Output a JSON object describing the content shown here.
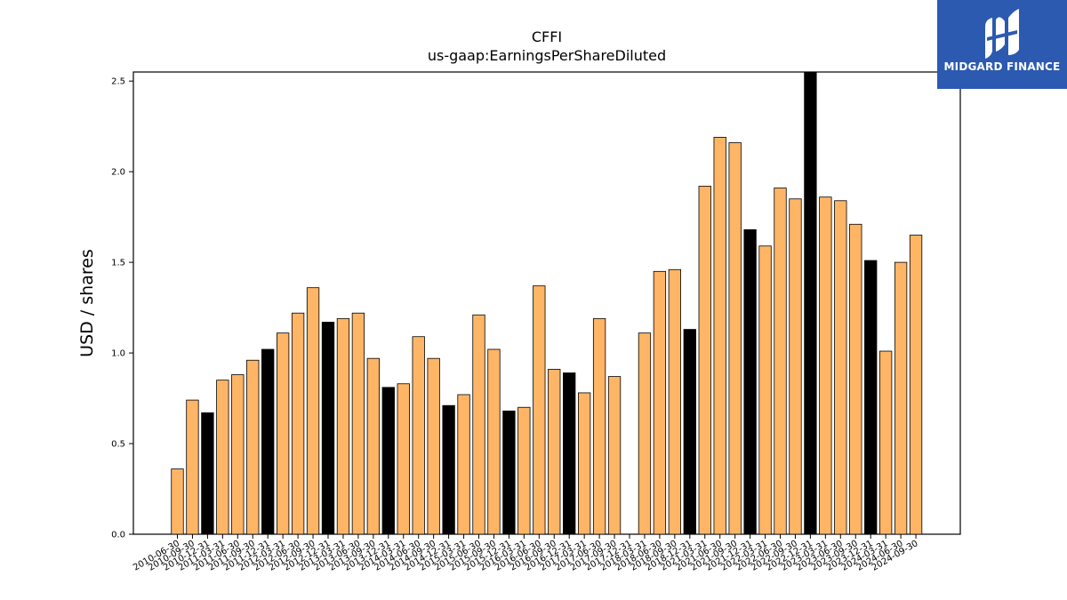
{
  "brand": {
    "name": "MIDGARD FINANCE",
    "bg_color": "#2b5ab0",
    "icon": "midgard-logo-icon"
  },
  "colors": {
    "bar_orange": "#ffb566",
    "bar_black": "#000000",
    "edge": "#000000"
  },
  "chart_data": {
    "type": "bar",
    "title": "CFFI",
    "subtitle": "us-gaap:EarningsPerShareDiluted",
    "xlabel": "",
    "ylabel": "USD / shares",
    "ylim": [
      0,
      2.55
    ],
    "yticks": [
      0.0,
      0.5,
      1.0,
      1.5,
      2.0,
      2.5
    ],
    "ytick_labels": [
      "0.0",
      "0.5",
      "1.0",
      "1.5",
      "2.0",
      "2.5"
    ],
    "grid": false,
    "categories": [
      "2010-06-30",
      "2010-09-30",
      "2010-12-31",
      "2011-03-31",
      "2011-06-30",
      "2011-09-30",
      "2011-12-31",
      "2012-03-31",
      "2012-06-30",
      "2012-09-30",
      "2012-12-31",
      "2013-03-31",
      "2013-06-30",
      "2013-09-30",
      "2013-12-31",
      "2014-03-31",
      "2014-06-30",
      "2014-09-30",
      "2014-12-31",
      "2015-03-31",
      "2015-06-30",
      "2015-09-30",
      "2015-12-31",
      "2016-03-31",
      "2016-06-30",
      "2016-09-30",
      "2016-12-31",
      "2017-03-31",
      "2017-06-30",
      "2017-09-30",
      "2017-12-31",
      "2018-03-31",
      "2018-06-30",
      "2018-09-30",
      "2018-12-31",
      "2021-03-31",
      "2021-06-30",
      "2021-09-30",
      "2021-12-31",
      "2022-03-31",
      "2022-06-30",
      "2022-09-30",
      "2022-12-31",
      "2023-03-31",
      "2023-06-30",
      "2023-09-30",
      "2023-12-31",
      "2024-03-31",
      "2024-06-30",
      "2024-09-30"
    ],
    "values": [
      0.36,
      0.74,
      0.67,
      0.85,
      0.88,
      0.96,
      1.02,
      1.11,
      1.22,
      1.36,
      1.17,
      1.19,
      1.22,
      0.97,
      0.81,
      0.83,
      1.09,
      0.97,
      0.71,
      0.77,
      1.21,
      1.02,
      0.68,
      0.7,
      1.37,
      0.91,
      0.89,
      0.78,
      1.19,
      0.87,
      0.0,
      1.11,
      1.45,
      1.46,
      1.13,
      1.92,
      2.19,
      2.16,
      1.68,
      1.59,
      1.91,
      1.85,
      2.55,
      1.86,
      1.84,
      1.71,
      1.51,
      1.01,
      1.5,
      1.65
    ],
    "highlight": [
      false,
      false,
      true,
      false,
      false,
      false,
      true,
      false,
      false,
      false,
      true,
      false,
      false,
      false,
      true,
      false,
      false,
      false,
      true,
      false,
      false,
      false,
      true,
      false,
      false,
      false,
      true,
      false,
      false,
      false,
      false,
      false,
      false,
      false,
      true,
      false,
      false,
      false,
      true,
      false,
      false,
      false,
      true,
      false,
      false,
      false,
      true,
      false,
      false,
      false
    ]
  }
}
